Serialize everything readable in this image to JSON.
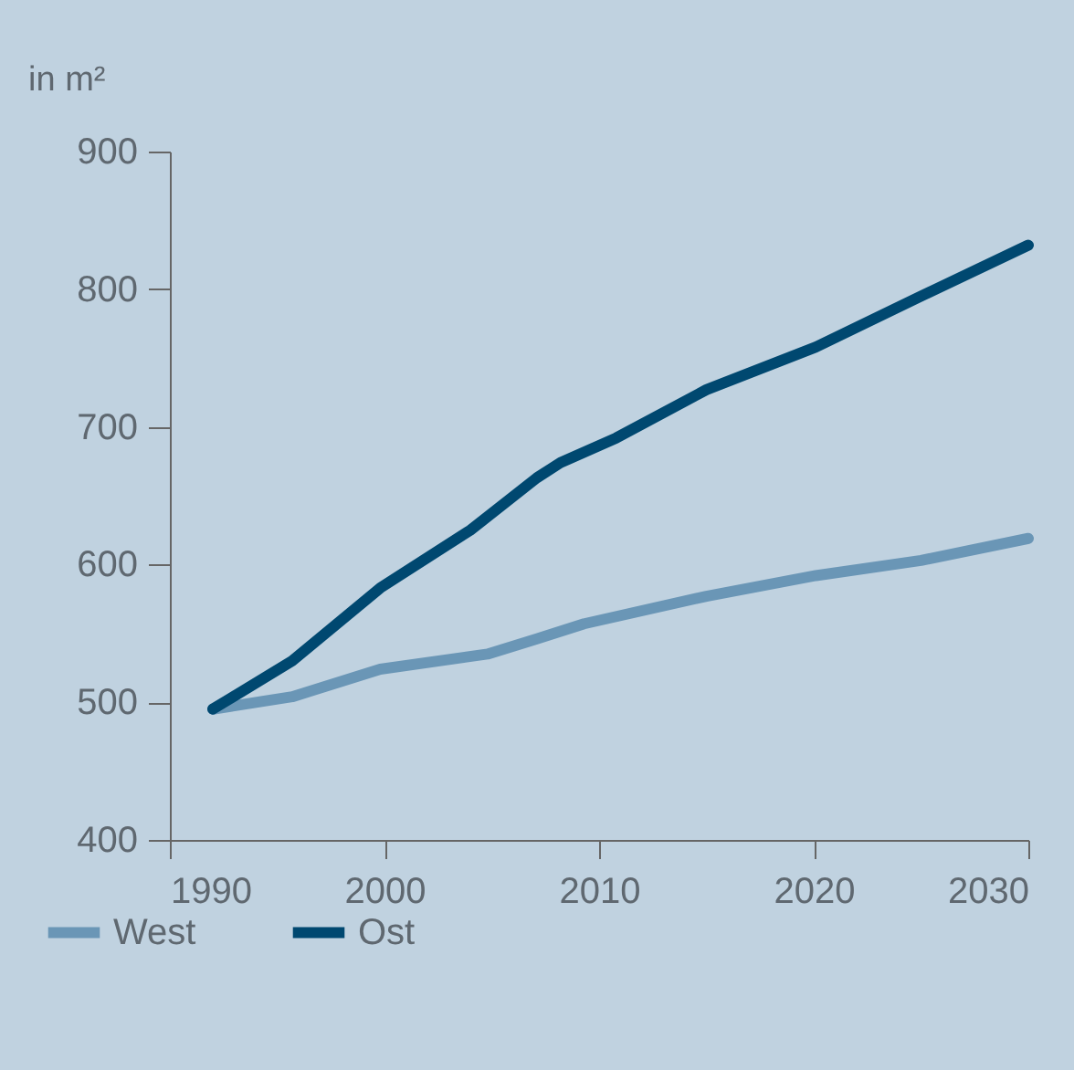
{
  "chart_data": {
    "type": "line",
    "ylabel": "in m²",
    "xlim": [
      1990,
      2030
    ],
    "xticks": [
      1990,
      2000,
      2010,
      2020,
      2030
    ],
    "ylim": [
      400,
      900
    ],
    "yticks": [
      400,
      500,
      600,
      700,
      800,
      900
    ],
    "grid": false,
    "legend": "bottom left",
    "line_style": "solid",
    "marker": "none",
    "series": [
      {
        "name": "West",
        "color": "#6a96b6",
        "x": [
          1992,
          1995.7,
          1999.8,
          2004.8,
          2007.1,
          2009.3,
          2015,
          2020.1,
          2025,
          2030
        ],
        "values": [
          495,
          504,
          524,
          535,
          546,
          557,
          577,
          592,
          603,
          619
        ]
      },
      {
        "name": "Ost",
        "color": "#004870",
        "x": [
          1992,
          1995.7,
          1999.8,
          2004,
          2007.1,
          2008.2,
          2010.8,
          2015,
          2020.1,
          2025,
          2030
        ],
        "values": [
          495,
          530,
          583,
          625,
          663,
          674,
          692,
          727,
          758,
          795,
          832
        ]
      }
    ]
  }
}
